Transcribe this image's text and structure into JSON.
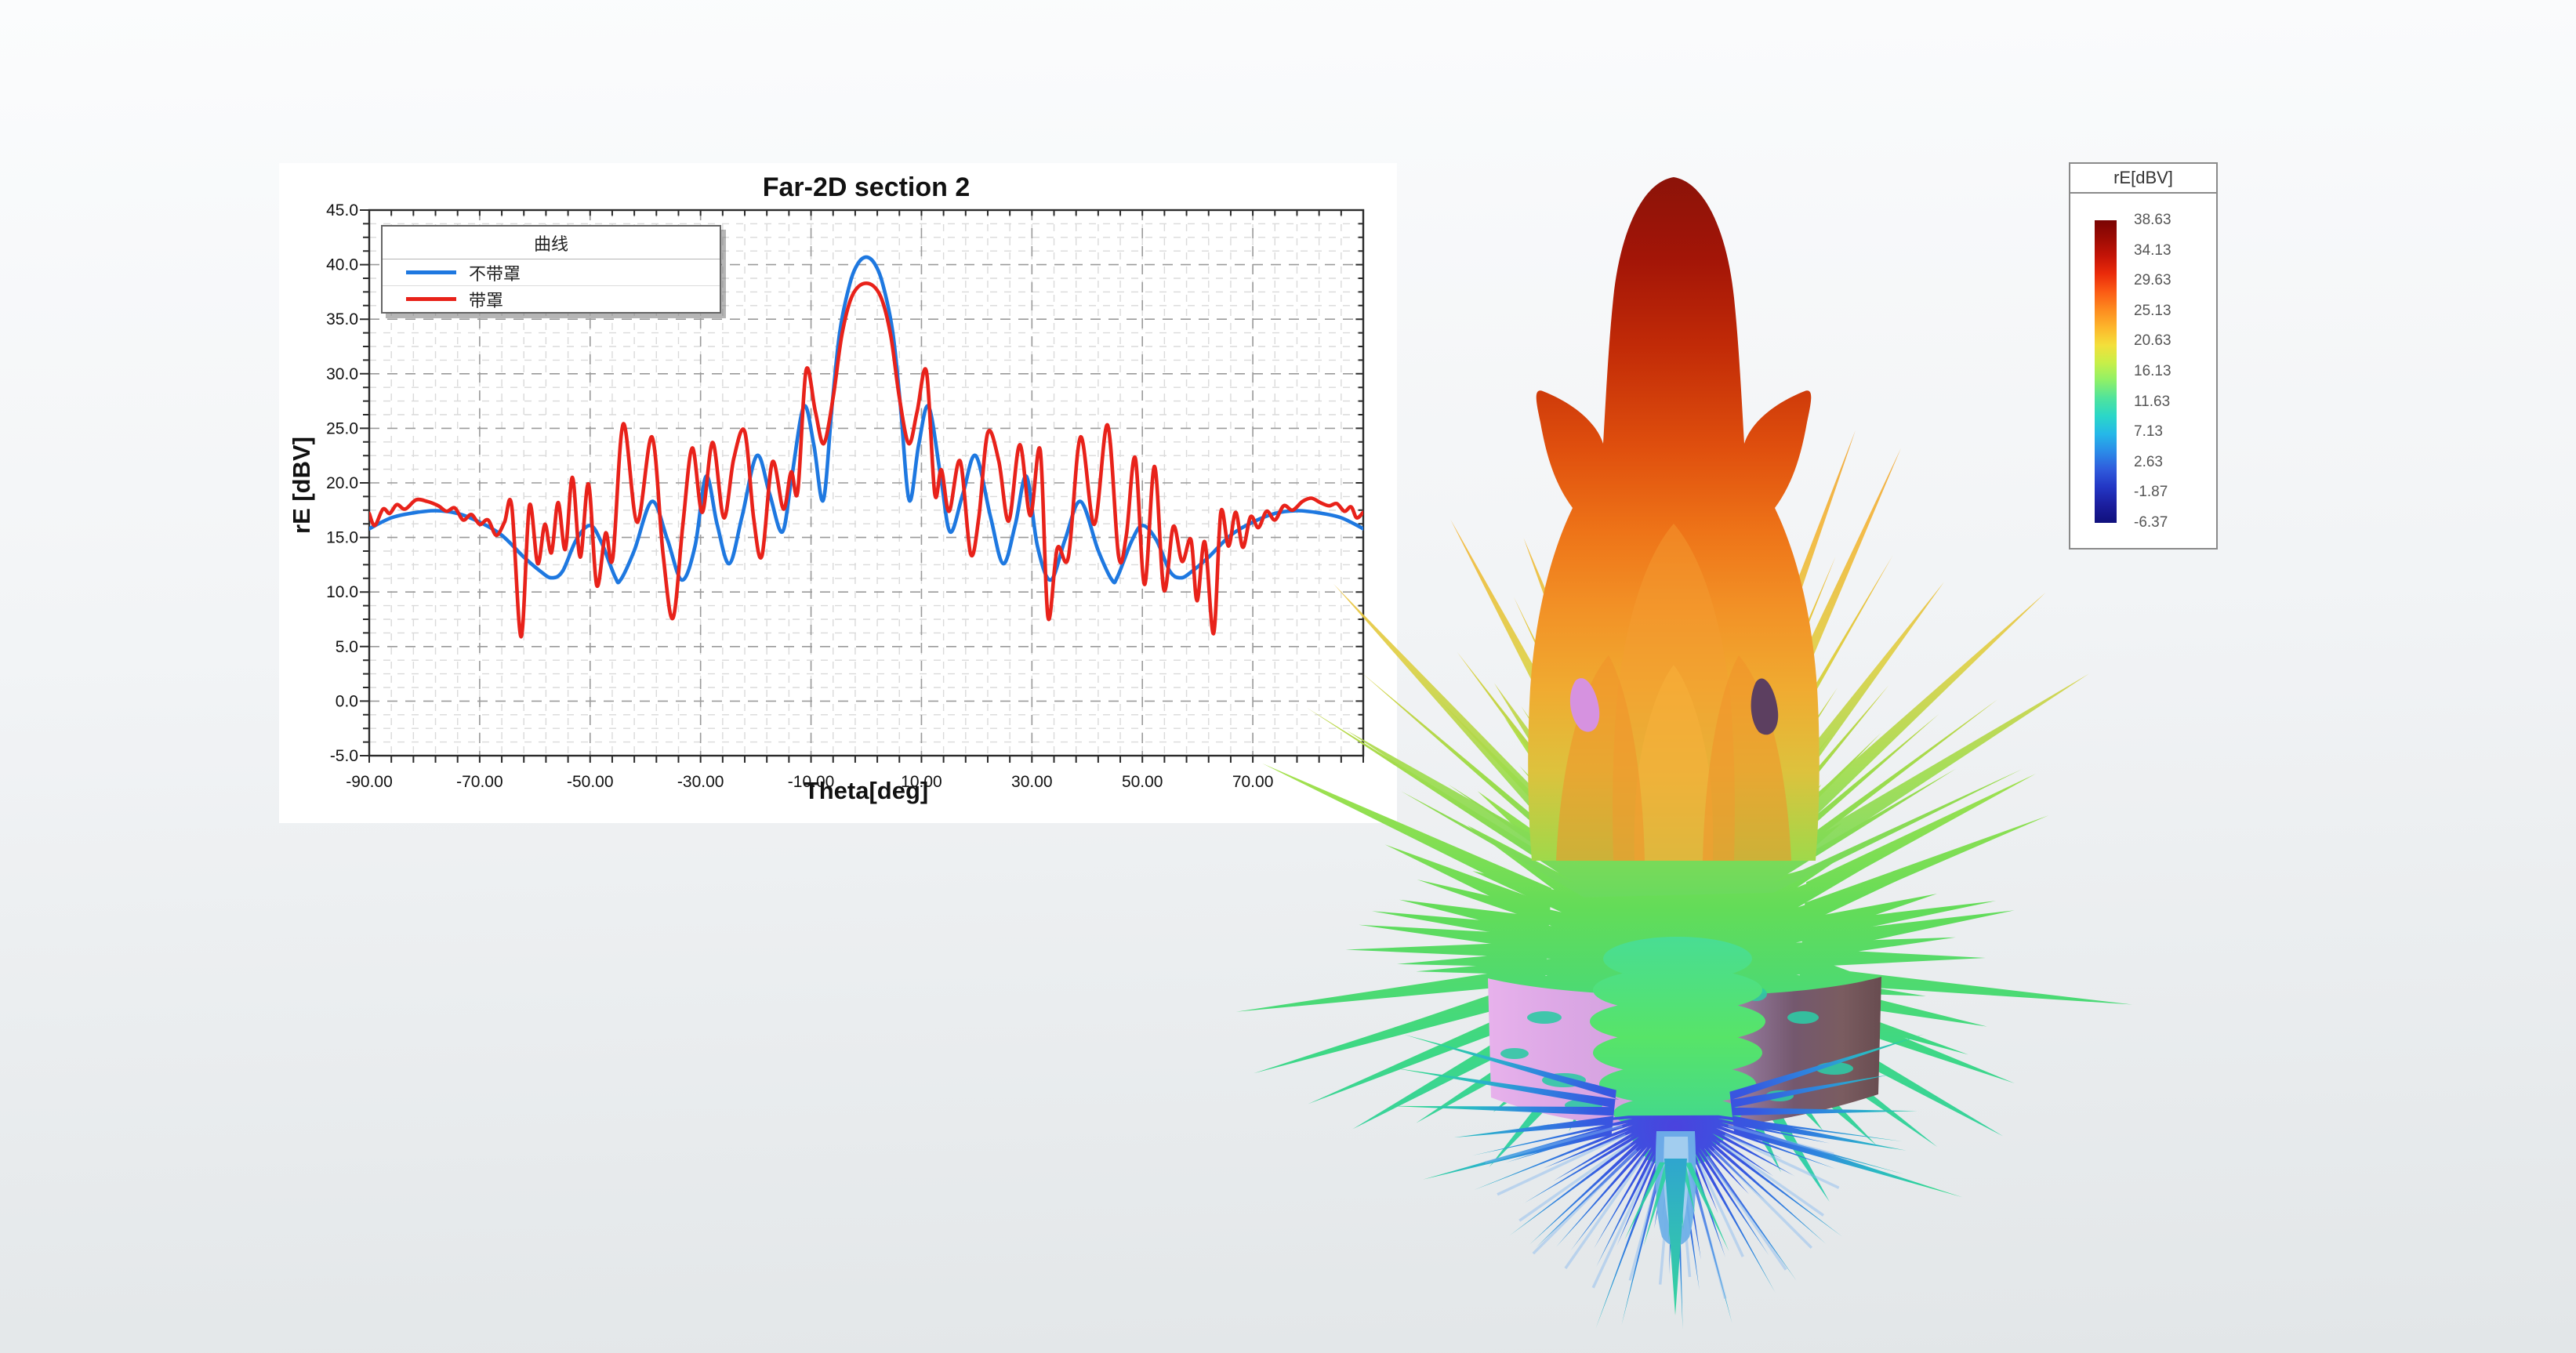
{
  "chart": {
    "title": "Far-2D section 2",
    "xlabel": "Theta[deg]",
    "ylabel": "rE [dBV]",
    "legend": {
      "title": "曲线",
      "series": [
        {
          "label": "不带罩",
          "color": "#1E78E0"
        },
        {
          "label": "带罩",
          "color": "#E8221A"
        }
      ]
    },
    "axes": {
      "xmin": -90,
      "xmax": 90,
      "xmajor": 20,
      "xminor": 4,
      "ymin": -5,
      "ymax": 45,
      "ymajor": 5,
      "yminor": 1.25,
      "xtick_labels": [
        "-90.00",
        "-70.00",
        "-50.00",
        "-30.00",
        "-10.00",
        "10.00",
        "30.00",
        "50.00",
        "70.00"
      ],
      "ytick_labels": [
        "45.0",
        "40.0",
        "35.0",
        "30.0",
        "25.0",
        "20.0",
        "15.0",
        "10.0",
        "5.0",
        "0.0",
        "-5.0"
      ],
      "grid": true
    }
  },
  "chart_data": {
    "type": "line",
    "title": "Far-2D section 2",
    "xlabel": "Theta[deg]",
    "ylabel": "rE [dBV]",
    "xlim": [
      -90,
      90
    ],
    "ylim": [
      -5,
      45
    ],
    "legend_position": "top-left",
    "series": [
      {
        "name": "不带罩",
        "color": "#1E78E0",
        "points": [
          [
            -90,
            15.8
          ],
          [
            -86,
            16.8
          ],
          [
            -82,
            17.25
          ],
          [
            -78,
            17.45
          ],
          [
            -74,
            17.2
          ],
          [
            -70,
            16.4
          ],
          [
            -66,
            15.2
          ],
          [
            -62,
            13.2
          ],
          [
            -59,
            11.9
          ],
          [
            -57,
            11.3
          ],
          [
            -55,
            11.9
          ],
          [
            -52.5,
            14.8
          ],
          [
            -50,
            16.1
          ],
          [
            -48,
            14.6
          ],
          [
            -45.5,
            11.4
          ],
          [
            -44.5,
            11.1
          ],
          [
            -42,
            13.8
          ],
          [
            -38.8,
            18.3
          ],
          [
            -36,
            14.8
          ],
          [
            -33.4,
            11.1
          ],
          [
            -31,
            14.2
          ],
          [
            -29,
            20.6
          ],
          [
            -27,
            16.2
          ],
          [
            -24.8,
            12.6
          ],
          [
            -22.5,
            16.9
          ],
          [
            -19.8,
            22.5
          ],
          [
            -17.5,
            19.0
          ],
          [
            -15.2,
            15.5
          ],
          [
            -13.5,
            20.5
          ],
          [
            -11.3,
            27.0
          ],
          [
            -9.5,
            23.5
          ],
          [
            -7.8,
            18.4
          ],
          [
            -6.2,
            27.0
          ],
          [
            -4.8,
            33.8
          ],
          [
            -3,
            38.2
          ],
          [
            -1.5,
            40.1
          ],
          [
            0,
            40.7
          ],
          [
            1.5,
            40.1
          ],
          [
            3,
            38.2
          ],
          [
            4.8,
            33.8
          ],
          [
            6.2,
            27.0
          ],
          [
            7.8,
            18.4
          ],
          [
            9.5,
            23.5
          ],
          [
            11.3,
            27.0
          ],
          [
            13.5,
            20.5
          ],
          [
            15.2,
            15.5
          ],
          [
            17.5,
            19.0
          ],
          [
            19.8,
            22.5
          ],
          [
            22.5,
            16.9
          ],
          [
            24.8,
            12.6
          ],
          [
            27,
            16.2
          ],
          [
            29,
            20.6
          ],
          [
            31,
            14.2
          ],
          [
            33.4,
            11.1
          ],
          [
            36,
            14.8
          ],
          [
            38.8,
            18.3
          ],
          [
            42,
            13.8
          ],
          [
            44.5,
            11.1
          ],
          [
            45.5,
            11.4
          ],
          [
            48,
            14.6
          ],
          [
            50,
            16.1
          ],
          [
            52.5,
            14.8
          ],
          [
            55,
            11.9
          ],
          [
            57,
            11.3
          ],
          [
            59,
            11.9
          ],
          [
            62,
            13.2
          ],
          [
            66,
            15.2
          ],
          [
            70,
            16.4
          ],
          [
            74,
            17.2
          ],
          [
            78,
            17.45
          ],
          [
            82,
            17.25
          ],
          [
            86,
            16.8
          ],
          [
            90,
            15.8
          ]
        ]
      },
      {
        "name": "带罩",
        "color": "#E8221A",
        "points": [
          [
            -90,
            17.2
          ],
          [
            -89,
            16.1
          ],
          [
            -87.5,
            17.6
          ],
          [
            -86.3,
            17.2
          ],
          [
            -85,
            18.0
          ],
          [
            -83.5,
            17.6
          ],
          [
            -81.5,
            18.45
          ],
          [
            -79.5,
            18.3
          ],
          [
            -77.5,
            17.9
          ],
          [
            -76,
            17.4
          ],
          [
            -74.5,
            17.7
          ],
          [
            -73,
            16.6
          ],
          [
            -71.5,
            17.1
          ],
          [
            -70,
            16.2
          ],
          [
            -68.5,
            16.6
          ],
          [
            -67,
            15.2
          ],
          [
            -65.5,
            16.4
          ],
          [
            -64.2,
            17.9
          ],
          [
            -62.5,
            5.9
          ],
          [
            -61,
            17.9
          ],
          [
            -59.5,
            12.6
          ],
          [
            -58.2,
            16.2
          ],
          [
            -57,
            13.6
          ],
          [
            -55.8,
            18.2
          ],
          [
            -54.5,
            13.9
          ],
          [
            -53.2,
            20.5
          ],
          [
            -51.8,
            13.2
          ],
          [
            -50.3,
            19.9
          ],
          [
            -48.8,
            10.6
          ],
          [
            -47.2,
            15.4
          ],
          [
            -45.9,
            13.1
          ],
          [
            -44,
            25.4
          ],
          [
            -41.5,
            16.4
          ],
          [
            -38.8,
            24.2
          ],
          [
            -36.8,
            13.5
          ],
          [
            -35,
            7.6
          ],
          [
            -33.2,
            16.2
          ],
          [
            -31.5,
            23.2
          ],
          [
            -29.7,
            17.3
          ],
          [
            -27.8,
            23.7
          ],
          [
            -25.8,
            16.8
          ],
          [
            -24,
            22.2
          ],
          [
            -22,
            24.7
          ],
          [
            -20.4,
            16.8
          ],
          [
            -18.9,
            13.3
          ],
          [
            -17,
            21.9
          ],
          [
            -15,
            17.6
          ],
          [
            -13.6,
            21.0
          ],
          [
            -12.4,
            19.2
          ],
          [
            -10.9,
            30.3
          ],
          [
            -9.2,
            26.5
          ],
          [
            -7.7,
            23.6
          ],
          [
            -6,
            27.8
          ],
          [
            -4.4,
            33.6
          ],
          [
            -2.5,
            37.2
          ],
          [
            0,
            38.3
          ],
          [
            2.5,
            37.2
          ],
          [
            4.4,
            33.6
          ],
          [
            6,
            27.8
          ],
          [
            7.7,
            23.6
          ],
          [
            9.2,
            26.5
          ],
          [
            10.9,
            30.2
          ],
          [
            12.4,
            19.0
          ],
          [
            13.6,
            21.2
          ],
          [
            15,
            17.4
          ],
          [
            17,
            22.0
          ],
          [
            18.9,
            13.5
          ],
          [
            20.4,
            16.9
          ],
          [
            22,
            24.6
          ],
          [
            24,
            22.0
          ],
          [
            25.8,
            16.5
          ],
          [
            27.8,
            23.5
          ],
          [
            29.7,
            17.0
          ],
          [
            31.5,
            23.0
          ],
          [
            32.9,
            7.7
          ],
          [
            34.6,
            14.0
          ],
          [
            36.6,
            13.2
          ],
          [
            38.8,
            24.2
          ],
          [
            41.3,
            16.2
          ],
          [
            43.7,
            25.3
          ],
          [
            45.7,
            13.3
          ],
          [
            47.1,
            15.2
          ],
          [
            48.7,
            22.3
          ],
          [
            50.4,
            10.7
          ],
          [
            52.2,
            21.5
          ],
          [
            53.9,
            10.2
          ],
          [
            55.6,
            16.0
          ],
          [
            57.2,
            12.8
          ],
          [
            58.8,
            14.8
          ],
          [
            59.9,
            9.2
          ],
          [
            61.3,
            14.6
          ],
          [
            62.9,
            6.2
          ],
          [
            64.2,
            17.3
          ],
          [
            65.6,
            14.2
          ],
          [
            66.9,
            17.3
          ],
          [
            68.2,
            14.1
          ],
          [
            69.6,
            16.9
          ],
          [
            71,
            15.9
          ],
          [
            72.5,
            17.4
          ],
          [
            74,
            16.6
          ],
          [
            75.6,
            17.9
          ],
          [
            77.2,
            17.5
          ],
          [
            79,
            18.3
          ],
          [
            80.6,
            18.6
          ],
          [
            82.2,
            18.2
          ],
          [
            83.8,
            17.9
          ],
          [
            85.2,
            18.1
          ],
          [
            86.6,
            17.4
          ],
          [
            87.8,
            17.8
          ],
          [
            88.8,
            16.8
          ],
          [
            90,
            17.3
          ]
        ]
      }
    ]
  },
  "colorbar": {
    "title": "rE[dBV]",
    "labels": [
      "38.63",
      "34.13",
      "29.63",
      "25.13",
      "20.63",
      "16.13",
      "11.63",
      "7.13",
      "2.63",
      "-1.87",
      "-6.37"
    ],
    "gradient": [
      "#7a0403",
      "#9c0b04",
      "#c41407",
      "#ea2b0a",
      "#fb5a14",
      "#fd8a1f",
      "#fdb52b",
      "#f4df3a",
      "#c8ef48",
      "#8ef068",
      "#4fe39d",
      "#2bd7c8",
      "#25b8e8",
      "#2b8be8",
      "#2f5bdc",
      "#2336c4",
      "#1b1e9e",
      "#10107c"
    ]
  }
}
